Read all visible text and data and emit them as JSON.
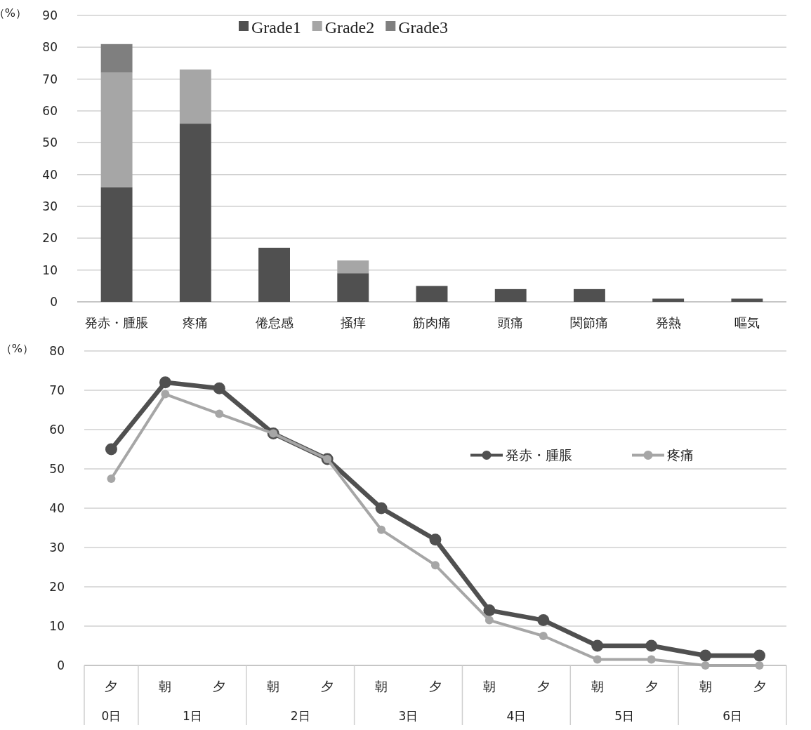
{
  "chart_data": [
    {
      "type": "bar",
      "stacked": true,
      "ylabel": "（%）",
      "categories": [
        "発赤・腫脹",
        "疼痛",
        "倦怠感",
        "掻痒",
        "筋肉痛",
        "頭痛",
        "関節痛",
        "発熱",
        "嘔気"
      ],
      "series": [
        {
          "name": "Grade1",
          "color": "#505050",
          "values": [
            36,
            56,
            17,
            9,
            5,
            4,
            4,
            1,
            1
          ]
        },
        {
          "name": "Grade2",
          "color": "#a6a6a6",
          "values": [
            36,
            17,
            0,
            4,
            0,
            0,
            0,
            0,
            0
          ]
        },
        {
          "name": "Grade3",
          "color": "#7f7f7f",
          "values": [
            9,
            0,
            0,
            0,
            0,
            0,
            0,
            0,
            0
          ]
        }
      ],
      "ylim": [
        0,
        90
      ],
      "yticks": [
        0,
        10,
        20,
        30,
        40,
        50,
        60,
        70,
        80,
        90
      ],
      "grid": "y",
      "legend": "top"
    },
    {
      "type": "line",
      "ylabel": "（%）",
      "categories": [
        "夕",
        "朝",
        "夕",
        "朝",
        "夕",
        "朝",
        "夕",
        "朝",
        "夕",
        "朝",
        "夕",
        "朝",
        "夕"
      ],
      "annotations": [
        "0日",
        "1日",
        "2日",
        "3日",
        "4日",
        "5日",
        "6日"
      ],
      "series": [
        {
          "name": "発赤・腫脹",
          "color": "#505050",
          "values": [
            55,
            72,
            70.5,
            59,
            52.5,
            40,
            32,
            14,
            11.5,
            5,
            5,
            2.5,
            2.5
          ]
        },
        {
          "name": "疼痛",
          "color": "#a6a6a6",
          "values": [
            47.5,
            69,
            64,
            59,
            52.5,
            34.5,
            25.5,
            11.5,
            7.5,
            1.5,
            1.5,
            0,
            0
          ]
        }
      ],
      "ylim": [
        0,
        80
      ],
      "yticks": [
        0,
        10,
        20,
        30,
        40,
        50,
        60,
        70,
        80
      ],
      "grid": "y",
      "legend": "right",
      "marker": "circle",
      "line_style": "solid"
    }
  ]
}
